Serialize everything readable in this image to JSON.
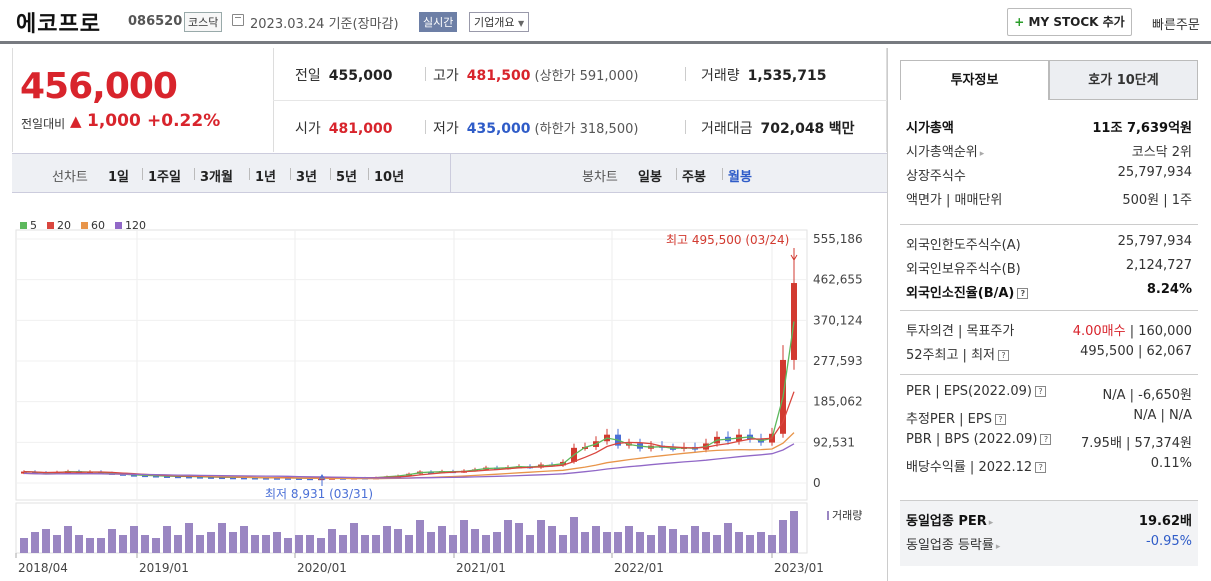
{
  "header": {
    "name": "에코프로",
    "code": "086520",
    "market": "코스닥",
    "date": "2023.03.24",
    "basis": "기준(장마감)",
    "realtime_label": "실시간",
    "company_label": "기업개요",
    "mystock_plus": "+",
    "mystock_label": "MY STOCK 추가",
    "quick_order_label": "빠른주문"
  },
  "summary": {
    "price": "456,000",
    "change_label": "전일대비",
    "change_arrow": "▲",
    "change": "1,000",
    "change_pct": "+0.22%",
    "prev_label": "전일",
    "prev": "455,000",
    "high_label": "고가",
    "high": "481,500",
    "upper_limit": "(상한가 591,000)",
    "volume_label": "거래량",
    "volume": "1,535,715",
    "open_label": "시가",
    "open": "481,000",
    "low_label": "저가",
    "low": "435,000",
    "lower_limit": "(하한가 318,500)",
    "value_label": "거래대금",
    "value": "702,048",
    "value_unit": "백만"
  },
  "period_bar": {
    "line_label": "선차트",
    "line_items": [
      "1일",
      "1주일",
      "3개월",
      "1년",
      "3년",
      "5년",
      "10년"
    ],
    "candle_label": "봉차트",
    "candle_items": [
      "일봉",
      "주봉",
      "월봉"
    ],
    "candle_selected": 2
  },
  "chart_data": {
    "type": "candlestick",
    "legend": [
      {
        "label": "5",
        "color": "#5cb85c"
      },
      {
        "label": "20",
        "color": "#d9463e"
      },
      {
        "label": "60",
        "color": "#e8954a"
      },
      {
        "label": "120",
        "color": "#9168c7"
      }
    ],
    "y_ticks": [
      "555,186",
      "462,655",
      "370,124",
      "277,593",
      "185,062",
      "92,531",
      "0"
    ],
    "ylim": [
      0,
      555186
    ],
    "x_ticks": [
      "2018/04",
      "2019/01",
      "2020/01",
      "2021/01",
      "2022/01",
      "2023/01"
    ],
    "high_annotation": "최고 495,500 (03/24)",
    "low_annotation": "최저 8,931 (03/31)",
    "volume_label": "거래량",
    "candles": [
      {
        "o": 22000,
        "c": 26000
      },
      {
        "o": 26000,
        "c": 24000
      },
      {
        "o": 24000,
        "c": 22000
      },
      {
        "o": 22000,
        "c": 25000
      },
      {
        "o": 25000,
        "c": 27000
      },
      {
        "o": 27000,
        "c": 24000
      },
      {
        "o": 24000,
        "c": 26000
      },
      {
        "o": 26000,
        "c": 23000
      },
      {
        "o": 23000,
        "c": 21000
      },
      {
        "o": 21000,
        "c": 19000
      },
      {
        "o": 19000,
        "c": 18000
      },
      {
        "o": 18000,
        "c": 17000
      },
      {
        "o": 17000,
        "c": 16000
      },
      {
        "o": 16000,
        "c": 15500
      },
      {
        "o": 15500,
        "c": 15000
      },
      {
        "o": 15000,
        "c": 14500
      },
      {
        "o": 14500,
        "c": 14000
      },
      {
        "o": 14000,
        "c": 13500
      },
      {
        "o": 13500,
        "c": 13000
      },
      {
        "o": 13000,
        "c": 12800
      },
      {
        "o": 12800,
        "c": 12500
      },
      {
        "o": 12500,
        "c": 12200
      },
      {
        "o": 12200,
        "c": 12000
      },
      {
        "o": 12000,
        "c": 11800
      },
      {
        "o": 11800,
        "c": 11500
      },
      {
        "o": 11500,
        "c": 11000
      },
      {
        "o": 11000,
        "c": 10500
      },
      {
        "o": 10500,
        "c": 11000
      },
      {
        "o": 11000,
        "c": 12000
      },
      {
        "o": 12000,
        "c": 11500
      },
      {
        "o": 11500,
        "c": 12500
      },
      {
        "o": 12500,
        "c": 11800
      },
      {
        "o": 11800,
        "c": 13000
      },
      {
        "o": 13000,
        "c": 15000
      },
      {
        "o": 15000,
        "c": 17000
      },
      {
        "o": 17000,
        "c": 21000
      },
      {
        "o": 21000,
        "c": 26000
      },
      {
        "o": 26000,
        "c": 24000
      },
      {
        "o": 24000,
        "c": 27000
      },
      {
        "o": 27000,
        "c": 25000
      },
      {
        "o": 25000,
        "c": 28000
      },
      {
        "o": 28000,
        "c": 31000
      },
      {
        "o": 31000,
        "c": 35000
      },
      {
        "o": 35000,
        "c": 33000
      },
      {
        "o": 33000,
        "c": 36000
      },
      {
        "o": 36000,
        "c": 38000
      },
      {
        "o": 38000,
        "c": 35000
      },
      {
        "o": 35000,
        "c": 42000
      },
      {
        "o": 42000,
        "c": 40000
      },
      {
        "o": 40000,
        "c": 48000
      },
      {
        "o": 48000,
        "c": 80000
      },
      {
        "o": 80000,
        "c": 82000
      },
      {
        "o": 82000,
        "c": 95000
      },
      {
        "o": 95000,
        "c": 110000
      },
      {
        "o": 110000,
        "c": 85000
      },
      {
        "o": 85000,
        "c": 90000
      },
      {
        "o": 90000,
        "c": 78000
      },
      {
        "o": 78000,
        "c": 85000
      },
      {
        "o": 85000,
        "c": 80000
      },
      {
        "o": 80000,
        "c": 78000
      },
      {
        "o": 78000,
        "c": 82000
      },
      {
        "o": 82000,
        "c": 76000
      },
      {
        "o": 76000,
        "c": 90000
      },
      {
        "o": 90000,
        "c": 105000
      },
      {
        "o": 105000,
        "c": 95000
      },
      {
        "o": 95000,
        "c": 110000
      },
      {
        "o": 110000,
        "c": 100000
      },
      {
        "o": 100000,
        "c": 92000
      },
      {
        "o": 92000,
        "c": 112000
      },
      {
        "o": 112000,
        "c": 280000
      },
      {
        "o": 280000,
        "c": 455000
      }
    ],
    "volumes": [
      0.25,
      0.35,
      0.4,
      0.3,
      0.45,
      0.3,
      0.25,
      0.25,
      0.4,
      0.3,
      0.45,
      0.3,
      0.25,
      0.45,
      0.3,
      0.5,
      0.3,
      0.35,
      0.5,
      0.35,
      0.45,
      0.3,
      0.3,
      0.35,
      0.25,
      0.3,
      0.3,
      0.25,
      0.4,
      0.3,
      0.5,
      0.3,
      0.3,
      0.45,
      0.4,
      0.3,
      0.55,
      0.35,
      0.45,
      0.3,
      0.55,
      0.4,
      0.3,
      0.35,
      0.55,
      0.5,
      0.3,
      0.55,
      0.45,
      0.3,
      0.6,
      0.35,
      0.45,
      0.35,
      0.35,
      0.45,
      0.35,
      0.3,
      0.45,
      0.4,
      0.3,
      0.45,
      0.35,
      0.3,
      0.5,
      0.35,
      0.3,
      0.35,
      0.3,
      0.55,
      0.7
    ],
    "ma_colors": {
      "ma5": "#5cb85c",
      "ma20": "#d9463e",
      "ma60": "#e8954a",
      "ma120": "#9168c7"
    }
  },
  "right_panel": {
    "tab_active": "투자정보",
    "tab_other": "호가 10단계",
    "g1": [
      {
        "l": "시가총액",
        "r": "11조 7,639억원",
        "bold": true
      },
      {
        "l": "시가총액순위",
        "r": "코스닥 2위",
        "arrow": true
      },
      {
        "l": "상장주식수",
        "r": "25,797,934"
      },
      {
        "l": "액면가 | 매매단위",
        "r": "500원 | 1주"
      }
    ],
    "g2": [
      {
        "l": "외국인한도주식수(A)",
        "r": "25,797,934"
      },
      {
        "l": "외국인보유주식수(B)",
        "r": "2,124,727"
      },
      {
        "l": "외국인소진율(B/A)",
        "r": "8.24%",
        "bold": true,
        "q": true
      }
    ],
    "g3": [
      {
        "l": "투자의견 | 목표주가",
        "r1": "4.00매수",
        "r2": " | 160,000"
      },
      {
        "l": "52주최고 | 최저",
        "r": "495,500 | 62,067",
        "q": true
      }
    ],
    "g4": [
      {
        "l": "PER | EPS(2022.09)",
        "r": "N/A | -6,650원",
        "q": true
      },
      {
        "l": "추정PER | EPS",
        "r": "N/A | N/A",
        "q": true
      },
      {
        "l": "PBR | BPS (2022.09)",
        "r": "7.95배 | 57,374원",
        "q": true
      },
      {
        "l": "배당수익률 | 2022.12",
        "r": "0.11%",
        "q": true
      }
    ],
    "g5": [
      {
        "l": "동일업종 PER",
        "r": "19.62배",
        "bold": true,
        "arrow": true
      },
      {
        "l": "동일업종 등락률",
        "r": "-0.95%",
        "blue": true,
        "arrow": true
      }
    ]
  }
}
